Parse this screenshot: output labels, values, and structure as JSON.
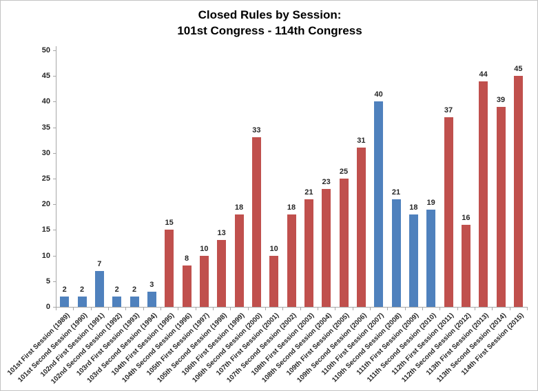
{
  "chart": {
    "title_line1": "Closed Rules by Session:",
    "title_line2": "101st Congress - 114th Congress"
  },
  "chart_data": {
    "type": "bar",
    "title": "Closed Rules by Session: 101st Congress - 114th Congress",
    "xlabel": "",
    "ylabel": "",
    "ylim": [
      0,
      50
    ],
    "yticks": [
      0,
      5,
      10,
      15,
      20,
      25,
      30,
      35,
      40,
      45,
      50
    ],
    "grid": false,
    "legend": false,
    "data_labels": true,
    "color_map": {
      "blue": "#4F81BD",
      "red": "#C0504D"
    },
    "categories": [
      "101st First Session (1989)",
      "101st Second Session (1990)",
      "102nd First Session (1991)",
      "102nd Second Session (1992)",
      "103rd First Session (1993)",
      "103rd Second Session (1994)",
      "104th First Session (1995)",
      "104th Second Session (1996)",
      "105th First Session (1997)",
      "105th Second Session (1998)",
      "106th First Session (1999)",
      "106th Second Session (2000)",
      "107th First Session (2001)",
      "107th Second Session (2002)",
      "108th First Session (2003)",
      "108th Second Session (2004)",
      "109th First Session (2005)",
      "109th Second Session (2006)",
      "110th First Session (2007)",
      "110th Second Session (2008)",
      "111th First Session (2009)",
      "111th Second Session (2010)",
      "112th First Session (2011)",
      "112th Second Session (2012)",
      "113th First Session (2013)",
      "113th Second Session (2014)",
      "114th First Session (2015)"
    ],
    "values": [
      2,
      2,
      7,
      2,
      2,
      3,
      15,
      8,
      10,
      13,
      18,
      33,
      10,
      18,
      21,
      23,
      25,
      31,
      40,
      21,
      18,
      19,
      37,
      16,
      44,
      39,
      45
    ],
    "bar_colors": [
      "blue",
      "blue",
      "blue",
      "blue",
      "blue",
      "blue",
      "red",
      "red",
      "red",
      "red",
      "red",
      "red",
      "red",
      "red",
      "red",
      "red",
      "red",
      "red",
      "blue",
      "blue",
      "blue",
      "blue",
      "red",
      "red",
      "red",
      "red",
      "red"
    ]
  }
}
